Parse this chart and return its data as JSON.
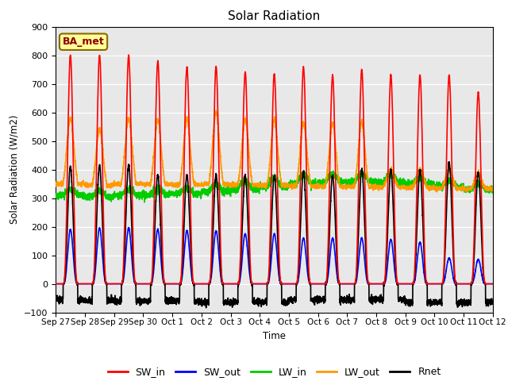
{
  "title": "Solar Radiation",
  "ylabel": "Solar Radiation (W/m2)",
  "xlabel": "Time",
  "ylim": [
    -100,
    900
  ],
  "legend_label": "BA_met",
  "series": {
    "SW_in": {
      "color": "#ff0000",
      "lw": 1.2
    },
    "SW_out": {
      "color": "#0000ff",
      "lw": 1.2
    },
    "LW_in": {
      "color": "#00cc00",
      "lw": 1.2
    },
    "LW_out": {
      "color": "#ff9900",
      "lw": 1.2
    },
    "Rnet": {
      "color": "#000000",
      "lw": 1.2
    }
  },
  "xtick_labels": [
    "Sep 27",
    "Sep 28",
    "Sep 29",
    "Sep 30",
    "Oct 1",
    "Oct 2",
    "Oct 3",
    "Oct 4",
    "Oct 5",
    "Oct 6",
    "Oct 7",
    "Oct 8",
    "Oct 9",
    "Oct 10",
    "Oct 11",
    "Oct 12"
  ],
  "plot_bg": "#e8e8e8",
  "fig_bg": "#ffffff",
  "grid_color": "#ffffff",
  "yticks": [
    -100,
    0,
    100,
    200,
    300,
    400,
    500,
    600,
    700,
    800,
    900
  ]
}
